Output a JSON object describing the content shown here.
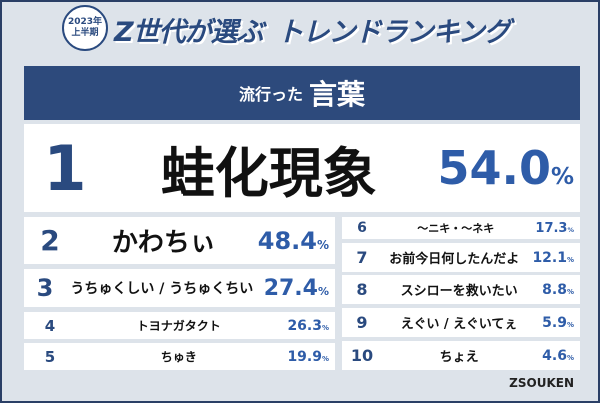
{
  "header": {
    "badge": [
      "2023年",
      "上半期"
    ],
    "title_main": "Z世代が選ぶ",
    "title_sub": "トレンドランキング"
  },
  "subtitle": {
    "small": "流行った",
    "large": "言葉"
  },
  "unit": "%",
  "ranking": [
    {
      "rank": 1,
      "word": "蛙化現象",
      "value": "54.0"
    },
    {
      "rank": 2,
      "word": "かわちぃ",
      "value": "48.4"
    },
    {
      "rank": 3,
      "word": "うちゅくしい / うちゅくちい",
      "value": "27.4"
    },
    {
      "rank": 4,
      "word": "トヨナガタクト",
      "value": "26.3"
    },
    {
      "rank": 5,
      "word": "ちゅき",
      "value": "19.9"
    },
    {
      "rank": 6,
      "word": "～ニキ・～ネキ",
      "value": "17.3"
    },
    {
      "rank": 7,
      "word": "お前今日何したんだよ",
      "value": "12.1"
    },
    {
      "rank": 8,
      "word": "スシローを救いたい",
      "value": "8.8"
    },
    {
      "rank": 9,
      "word": "えぐい / えぐいてぇ",
      "value": "5.9"
    },
    {
      "rank": 10,
      "word": "ちょえ",
      "value": "4.6"
    }
  ],
  "logo": "ZSOUKEN"
}
